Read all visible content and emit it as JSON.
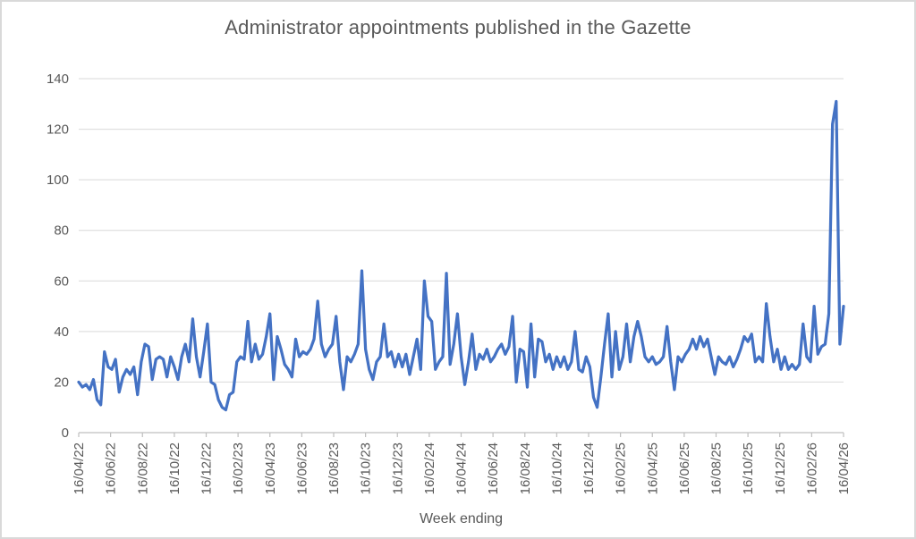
{
  "chart_data": {
    "type": "line",
    "title": "Administrator appointments published in the Gazette",
    "xlabel": "Week ending",
    "ylabel": "",
    "legend": "none",
    "grid": "horizontal",
    "ylim": [
      0,
      140
    ],
    "y_ticks": [
      0,
      20,
      40,
      60,
      80,
      100,
      120,
      140
    ],
    "x_tick_labels": [
      "16/04/22",
      "16/06/22",
      "16/08/22",
      "16/10/22",
      "16/12/22",
      "16/02/23",
      "16/04/23",
      "16/06/23",
      "16/08/23",
      "16/10/23",
      "16/12/23",
      "16/02/24",
      "16/04/24",
      "16/06/24",
      "16/08/24",
      "16/10/24",
      "16/12/24",
      "16/02/25",
      "16/04/25",
      "16/06/25",
      "16/08/25",
      "16/10/25",
      "16/12/25",
      "16/02/26",
      "16/04/26"
    ],
    "x_unit": "weekly",
    "line_color": "#4472C4",
    "gridline_color": "#d9d9d9",
    "axis_color": "#bfbfbf",
    "text_color": "#595959",
    "values": [
      20,
      18,
      19,
      17,
      21,
      13,
      11,
      32,
      26,
      25,
      29,
      16,
      22,
      25,
      23,
      26,
      15,
      28,
      35,
      34,
      21,
      29,
      30,
      29,
      22,
      30,
      26,
      21,
      30,
      35,
      28,
      45,
      30,
      22,
      32,
      43,
      20,
      19,
      13,
      10,
      9,
      15,
      16,
      28,
      30,
      29,
      44,
      28,
      35,
      29,
      31,
      38,
      47,
      21,
      38,
      33,
      27,
      25,
      22,
      37,
      30,
      32,
      31,
      33,
      37,
      52,
      35,
      30,
      33,
      35,
      46,
      28,
      17,
      30,
      28,
      31,
      35,
      64,
      33,
      25,
      21,
      28,
      30,
      43,
      30,
      32,
      26,
      31,
      26,
      31,
      23,
      30,
      37,
      25,
      60,
      46,
      44,
      25,
      28,
      30,
      63,
      27,
      35,
      47,
      30,
      19,
      28,
      39,
      25,
      31,
      29,
      33,
      28,
      30,
      33,
      35,
      31,
      34,
      46,
      20,
      33,
      32,
      18,
      43,
      22,
      37,
      36,
      28,
      31,
      25,
      30,
      26,
      30,
      25,
      28,
      40,
      25,
      24,
      30,
      26,
      14,
      10,
      22,
      35,
      47,
      22,
      40,
      25,
      30,
      43,
      28,
      38,
      44,
      38,
      30,
      28,
      30,
      27,
      28,
      30,
      42,
      28,
      17,
      30,
      28,
      31,
      33,
      37,
      33,
      38,
      34,
      37,
      30,
      23,
      30,
      28,
      27,
      30,
      26,
      29,
      33,
      38,
      36,
      39,
      28,
      30,
      28,
      51,
      38,
      28,
      33,
      25,
      30,
      25,
      27,
      25,
      27,
      43,
      30,
      28,
      50,
      31,
      34,
      35,
      47,
      122,
      131,
      35,
      50
    ]
  }
}
